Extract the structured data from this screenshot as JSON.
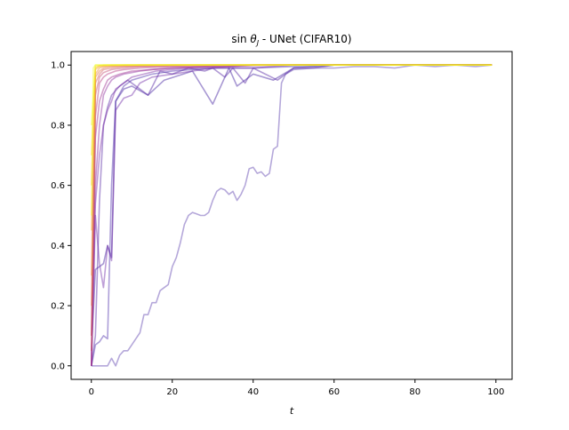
{
  "chart_data": {
    "type": "line",
    "title": "sin θ_J - UNet (CIFAR10)",
    "title_parts": {
      "fn": "sin",
      "sym": "θ",
      "sub": "J",
      "rest": " - UNet (CIFAR10)"
    },
    "xlabel": "t",
    "ylabel": "",
    "xlim": [
      -5,
      104
    ],
    "ylim": [
      -0.045,
      1.045
    ],
    "xticks": [
      0,
      20,
      40,
      60,
      80,
      100
    ],
    "yticks": [
      0.0,
      0.2,
      0.4,
      0.6,
      0.8,
      1.0
    ],
    "xtick_labels": [
      "0",
      "20",
      "40",
      "60",
      "80",
      "100"
    ],
    "ytick_labels": [
      "0.0",
      "0.2",
      "0.4",
      "0.6",
      "0.8",
      "1.0"
    ],
    "grid": false,
    "legend": "none",
    "colormap": "plasma",
    "alpha": 0.45,
    "series": [
      {
        "color": "#5b3fae",
        "x": [
          0,
          1,
          2,
          3,
          4,
          5,
          6,
          7,
          8,
          9,
          10,
          11,
          12,
          13,
          14,
          15,
          16,
          17,
          18,
          19,
          20,
          21,
          22,
          23,
          24,
          25,
          26,
          27,
          28,
          29,
          30,
          31,
          32,
          33,
          34,
          35,
          36,
          37,
          38,
          39,
          40,
          41,
          42,
          43,
          44,
          45,
          46,
          47,
          48,
          50,
          55,
          60,
          65,
          70,
          75,
          80,
          85,
          90,
          95,
          99
        ],
        "y": [
          0.0,
          0.0,
          0.0,
          0.0,
          0.0,
          0.025,
          0.0,
          0.035,
          0.05,
          0.05,
          0.07,
          0.09,
          0.11,
          0.17,
          0.17,
          0.21,
          0.21,
          0.25,
          0.26,
          0.27,
          0.33,
          0.36,
          0.41,
          0.47,
          0.5,
          0.51,
          0.505,
          0.5,
          0.5,
          0.51,
          0.55,
          0.58,
          0.59,
          0.585,
          0.57,
          0.58,
          0.55,
          0.57,
          0.6,
          0.655,
          0.66,
          0.64,
          0.645,
          0.63,
          0.64,
          0.72,
          0.73,
          0.94,
          0.97,
          0.985,
          0.99,
          0.99,
          0.995,
          0.995,
          0.99,
          1.0,
          0.995,
          1.0,
          0.995,
          1.0
        ]
      },
      {
        "color": "#4a2aa8",
        "x": [
          0,
          1,
          2,
          3,
          4,
          5,
          6,
          8,
          10,
          15,
          20,
          30,
          40,
          60,
          80,
          99
        ],
        "y": [
          0.0,
          0.07,
          0.08,
          0.1,
          0.09,
          0.6,
          0.88,
          0.93,
          0.95,
          0.97,
          0.98,
          0.99,
          0.99,
          1.0,
          1.0,
          1.0
        ]
      },
      {
        "color": "#3d1b9e",
        "x": [
          0,
          1,
          2,
          3,
          4,
          5,
          6,
          8,
          10,
          14,
          18,
          25,
          30,
          34,
          36,
          40,
          45,
          50,
          60,
          80,
          99
        ],
        "y": [
          0.05,
          0.32,
          0.33,
          0.34,
          0.4,
          0.36,
          0.88,
          0.92,
          0.93,
          0.9,
          0.95,
          0.98,
          0.87,
          0.99,
          0.93,
          0.97,
          0.95,
          0.99,
          1.0,
          1.0,
          1.0
        ]
      },
      {
        "color": "#6e2aa6",
        "x": [
          0,
          1,
          2,
          3,
          4,
          5,
          6,
          8,
          10,
          12,
          15,
          20,
          25,
          30,
          40,
          50,
          60,
          80,
          99
        ],
        "y": [
          0.0,
          0.5,
          0.34,
          0.26,
          0.4,
          0.35,
          0.85,
          0.89,
          0.9,
          0.94,
          0.96,
          0.97,
          0.98,
          0.99,
          0.99,
          1.0,
          1.0,
          1.0,
          1.0
        ]
      },
      {
        "color": "#5321a2",
        "x": [
          0,
          1,
          2,
          3,
          4,
          5,
          7,
          9,
          12,
          14,
          17,
          20,
          24,
          28,
          30,
          33,
          35,
          38,
          40,
          43,
          46,
          50,
          55,
          60,
          70,
          80,
          99
        ],
        "y": [
          0.0,
          0.1,
          0.55,
          0.8,
          0.86,
          0.9,
          0.93,
          0.95,
          0.92,
          0.9,
          0.98,
          0.97,
          0.99,
          0.98,
          0.99,
          0.96,
          0.99,
          0.94,
          0.99,
          0.97,
          0.95,
          0.99,
          0.99,
          1.0,
          1.0,
          1.0,
          1.0
        ]
      },
      {
        "color": "#7b2aa3",
        "x": [
          0,
          1,
          2,
          3,
          4,
          5,
          6,
          8,
          10,
          13,
          16,
          20,
          25,
          30,
          40,
          60,
          99
        ],
        "y": [
          0.0,
          0.54,
          0.7,
          0.8,
          0.85,
          0.88,
          0.92,
          0.94,
          0.96,
          0.97,
          0.98,
          0.985,
          0.99,
          0.99,
          1.0,
          1.0,
          1.0
        ]
      },
      {
        "color": "#8b2a9c",
        "x": [
          0,
          1,
          2,
          3,
          4,
          5,
          6,
          8,
          10,
          12,
          15,
          20,
          30,
          40,
          60,
          99
        ],
        "y": [
          0.1,
          0.6,
          0.8,
          0.9,
          0.93,
          0.95,
          0.96,
          0.97,
          0.975,
          0.98,
          0.985,
          0.99,
          0.995,
          1.0,
          1.0,
          1.0
        ]
      },
      {
        "color": "#9e2d8f",
        "x": [
          0,
          1,
          2,
          3,
          4,
          5,
          7,
          10,
          15,
          20,
          30,
          50,
          99
        ],
        "y": [
          0.0,
          0.76,
          0.88,
          0.92,
          0.95,
          0.96,
          0.97,
          0.98,
          0.985,
          0.99,
          0.995,
          1.0,
          1.0
        ]
      },
      {
        "color": "#b53a80",
        "x": [
          0,
          1,
          2,
          3,
          4,
          6,
          8,
          12,
          20,
          40,
          99
        ],
        "y": [
          0.0,
          0.83,
          0.94,
          0.96,
          0.97,
          0.98,
          0.985,
          0.99,
          0.995,
          1.0,
          1.0
        ]
      },
      {
        "color": "#c44b70",
        "x": [
          0,
          1,
          2,
          3,
          5,
          8,
          12,
          20,
          40,
          99
        ],
        "y": [
          0.1,
          0.9,
          0.96,
          0.975,
          0.985,
          0.99,
          0.995,
          0.997,
          1.0,
          1.0
        ]
      },
      {
        "color": "#d35f5f",
        "x": [
          0,
          1,
          2,
          3,
          5,
          8,
          15,
          30,
          99
        ],
        "y": [
          0.05,
          0.94,
          0.97,
          0.985,
          0.99,
          0.995,
          0.997,
          1.0,
          1.0
        ]
      },
      {
        "color": "#e07450",
        "x": [
          0,
          1,
          2,
          3,
          5,
          10,
          20,
          99
        ],
        "y": [
          0.2,
          0.96,
          0.98,
          0.99,
          0.995,
          0.997,
          1.0,
          1.0
        ]
      },
      {
        "color": "#ec8b3f",
        "x": [
          0,
          1,
          2,
          3,
          6,
          12,
          99
        ],
        "y": [
          0.3,
          0.97,
          0.99,
          0.995,
          0.997,
          1.0,
          1.0
        ]
      },
      {
        "color": "#f5a42f",
        "x": [
          0,
          1,
          2,
          4,
          8,
          99
        ],
        "y": [
          0.45,
          0.985,
          0.995,
          0.998,
          1.0,
          1.0
        ]
      },
      {
        "color": "#fbbf26",
        "x": [
          0,
          1,
          2,
          5,
          99
        ],
        "y": [
          0.6,
          0.99,
          0.998,
          1.0,
          1.0
        ]
      },
      {
        "color": "#f9d71f",
        "x": [
          0,
          1,
          3,
          99
        ],
        "y": [
          0.7,
          0.995,
          1.0,
          1.0
        ]
      },
      {
        "color": "#f0f921",
        "x": [
          0,
          1,
          2,
          99
        ],
        "y": [
          0.8,
          1.0,
          1.0,
          1.0
        ]
      },
      {
        "color": "#f0f921",
        "x": [
          0,
          0.5,
          1,
          99
        ],
        "y": [
          0.5,
          0.99,
          1.0,
          1.0
        ]
      }
    ]
  }
}
